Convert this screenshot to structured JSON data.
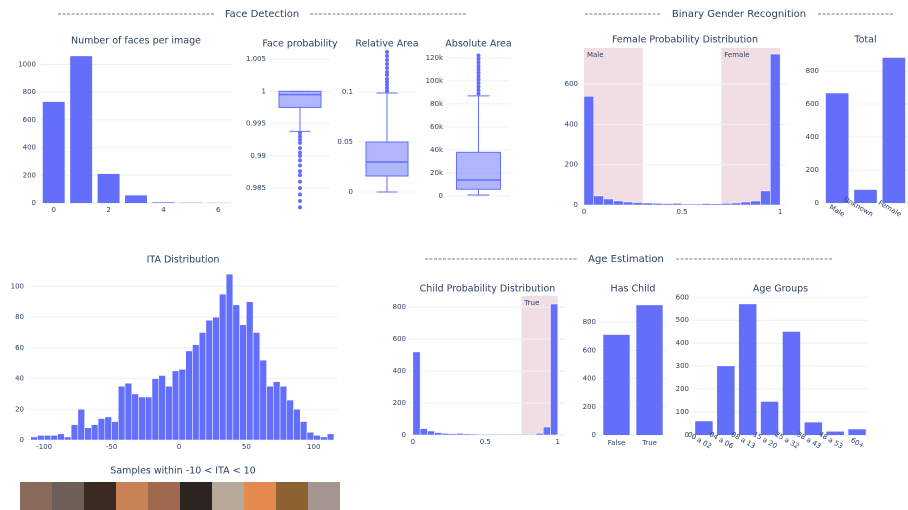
{
  "sections": [
    {
      "title": "Face Detection"
    },
    {
      "title": "Binary Gender Recognition"
    },
    {
      "title": "Age Estimation"
    }
  ],
  "image_strip": {
    "title": "Samples within -10 < ITA < 10"
  },
  "chart_data": [
    {
      "type": "bar",
      "title": "Number of faces per image",
      "x": [
        0,
        1,
        2,
        3,
        4,
        5,
        6
      ],
      "values": [
        730,
        1060,
        210,
        55,
        5,
        2,
        1
      ],
      "color": "#636efa",
      "xlim": [
        -0.5,
        6.5
      ],
      "xticks": [
        0,
        2,
        4,
        6
      ],
      "ylim": [
        0,
        1090
      ],
      "yticks": [
        0,
        200,
        400,
        600,
        800,
        1000
      ],
      "grid": true
    },
    {
      "type": "box",
      "title": "Face probability",
      "min": 0.9938,
      "q1": 0.9975,
      "median": 0.9995,
      "q3": 1,
      "max": 1,
      "outliers": [
        0.9935,
        0.993,
        0.9925,
        0.992,
        0.9912,
        0.9905,
        0.99,
        0.9893,
        0.9885,
        0.9876,
        0.987,
        0.986,
        0.985,
        0.984,
        0.983,
        0.982
      ],
      "color": "#636efa",
      "ylim": [
        0.9816,
        1.0061
      ],
      "yticks": [
        0.985,
        0.99,
        0.995,
        1,
        1.005
      ],
      "grid": true
    },
    {
      "type": "box",
      "title": "Relative Area",
      "min": 0,
      "q1": 0.016,
      "median": 0.03,
      "q3": 0.05,
      "max": 0.099,
      "outliers": [
        0.101,
        0.104,
        0.107,
        0.11,
        0.113,
        0.117,
        0.12,
        0.124,
        0.128,
        0.132,
        0.136,
        0.14
      ],
      "color": "#636efa",
      "ylim": [
        -0.018,
        0.14
      ],
      "yticks": [
        0,
        0.05,
        0.1
      ],
      "grid": true
    },
    {
      "type": "box",
      "title": "Absolute Area",
      "min": 1000,
      "q1": 6000,
      "median": 14000,
      "q3": 38000,
      "max": 87000,
      "outliers": [
        89000,
        92000,
        95000,
        98000,
        101000,
        104000,
        107000,
        110000,
        113000,
        116000,
        119000,
        122000
      ],
      "color": "#636efa",
      "ylim": [
        -12000,
        125000
      ],
      "yticks": [
        0,
        {
          "value": 20000,
          "label": "20k"
        },
        {
          "value": 40000,
          "label": "40k"
        },
        {
          "value": 60000,
          "label": "60k"
        },
        {
          "value": 80000,
          "label": "80k"
        },
        {
          "value": 100000,
          "label": "100k"
        },
        {
          "value": 120000,
          "label": "120k"
        }
      ],
      "grid": true
    },
    {
      "type": "histogram",
      "title": "Female Probability Distribution",
      "bins": [
        0,
        0.05,
        0.1,
        0.15,
        0.2,
        0.25,
        0.3,
        0.35,
        0.4,
        0.45,
        0.5,
        0.55,
        0.6,
        0.65,
        0.7,
        0.75,
        0.8,
        0.85,
        0.9,
        0.95,
        1
      ],
      "values": [
        540,
        45,
        30,
        20,
        15,
        12,
        10,
        8,
        7,
        8,
        5,
        5,
        7,
        6,
        8,
        10,
        15,
        20,
        70,
        750
      ],
      "color": "#636efa",
      "regions": [
        {
          "label": "Male",
          "x0": 0,
          "x1": 0.3
        },
        {
          "label": "Female",
          "x0": 0.7,
          "x1": 1
        }
      ],
      "xlim": [
        -0.01,
        1.04
      ],
      "xticks": [
        0,
        0.5,
        1
      ],
      "ylim": [
        0,
        780
      ],
      "yticks": [
        0,
        200,
        400,
        600
      ],
      "grid": true
    },
    {
      "type": "bar",
      "title": "Total",
      "categories": [
        "Male",
        "Unknown",
        "Female"
      ],
      "values": [
        665,
        80,
        880
      ],
      "color": "#636efa",
      "ylim": [
        0,
        915
      ],
      "yticks": [
        0,
        200,
        400,
        600,
        800
      ],
      "grid": true,
      "rotate_labels": true
    },
    {
      "type": "histogram",
      "title": "ITA Distribution",
      "bins": [
        -110,
        -105,
        -100,
        -95,
        -90,
        -85,
        -80,
        -75,
        -70,
        -65,
        -60,
        -55,
        -50,
        -45,
        -40,
        -35,
        -30,
        -25,
        -20,
        -15,
        -10,
        -5,
        0,
        5,
        10,
        15,
        20,
        25,
        30,
        35,
        40,
        45,
        50,
        55,
        60,
        65,
        70,
        75,
        80,
        85,
        90,
        95,
        100,
        105,
        110,
        115
      ],
      "values": [
        2,
        3,
        3,
        3,
        4,
        2,
        10,
        20,
        8,
        10,
        14,
        15,
        12,
        35,
        37,
        30,
        28,
        28,
        40,
        42,
        35,
        45,
        46,
        58,
        62,
        70,
        78,
        80,
        95,
        108,
        88,
        75,
        90,
        70,
        52,
        35,
        38,
        35,
        26,
        20,
        12,
        5,
        3,
        2,
        4
      ],
      "color": "#636efa",
      "xlim": [
        -112,
        118
      ],
      "xticks": [
        -100,
        -50,
        0,
        50,
        100
      ],
      "ylim": [
        0,
        112
      ],
      "yticks": [
        0,
        20,
        40,
        60,
        80,
        100
      ],
      "grid": true
    },
    {
      "type": "histogram",
      "title": "Child Probability Distribution",
      "bins": [
        0,
        0.05,
        0.1,
        0.15,
        0.2,
        0.25,
        0.3,
        0.35,
        0.4,
        0.45,
        0.5,
        0.55,
        0.6,
        0.65,
        0.7,
        0.75,
        0.8,
        0.85,
        0.9,
        0.95,
        1
      ],
      "values": [
        520,
        40,
        25,
        15,
        10,
        8,
        10,
        7,
        6,
        5,
        5,
        5,
        5,
        5,
        5,
        5,
        5,
        10,
        50,
        820
      ],
      "color": "#636efa",
      "regions": [
        {
          "label": "True",
          "x0": 0.75,
          "x1": 1
        }
      ],
      "xlim": [
        -0.02,
        1.05
      ],
      "xticks": [
        0,
        0.5,
        1
      ],
      "ylim": [
        0,
        870
      ],
      "yticks": [
        0,
        200,
        400,
        600,
        800
      ],
      "grid": true
    },
    {
      "type": "bar",
      "title": "Has Child",
      "categories": [
        "False",
        "True"
      ],
      "values": [
        710,
        920
      ],
      "color": "#636efa",
      "ylim": [
        0,
        985
      ],
      "yticks": [
        0,
        200,
        400,
        600,
        800
      ],
      "grid": true
    },
    {
      "type": "bar",
      "title": "Age Groups",
      "categories": [
        "00 a 02",
        "04 a 06",
        "08 a 13",
        "15 a 20",
        "25 a 32",
        "38 a 43",
        "48 a 53",
        "60+"
      ],
      "values": [
        60,
        300,
        570,
        145,
        450,
        55,
        15,
        25
      ],
      "color": "#636efa",
      "ylim": [
        0,
        610
      ],
      "yticks": [
        0,
        100,
        200,
        300,
        400,
        500,
        600
      ],
      "grid": true,
      "rotate_labels": true
    }
  ]
}
